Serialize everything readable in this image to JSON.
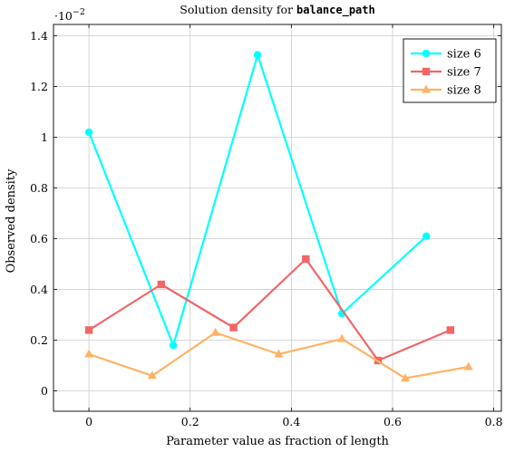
{
  "chart_data": {
    "type": "line",
    "title": "Solution density for ",
    "title_code": "balance_path",
    "xlabel": "Parameter value as fraction of length",
    "ylabel": "Observed density",
    "y_exponent_label": "·10",
    "y_exponent_power": "−2",
    "xlim": [
      -0.07,
      0.815
    ],
    "ylim": [
      -0.08,
      1.445
    ],
    "xticks": [
      0,
      0.2,
      0.4,
      0.6,
      0.8
    ],
    "xtick_labels": [
      "0",
      "0.2",
      "0.4",
      "0.6",
      "0.8"
    ],
    "yticks": [
      0,
      0.2,
      0.4,
      0.6,
      0.8,
      1,
      1.2,
      1.4
    ],
    "ytick_labels": [
      "0",
      "0.2",
      "0.4",
      "0.6",
      "0.8",
      "1",
      "1.2",
      "1.4"
    ],
    "grid": true,
    "legend_position": "top-right",
    "series": [
      {
        "name": "size 6",
        "color": "#00ffff",
        "marker": "circle",
        "x": [
          0,
          0.1667,
          0.3333,
          0.5,
          0.6667
        ],
        "y": [
          1.02,
          0.18,
          1.325,
          0.305,
          0.61
        ]
      },
      {
        "name": "size 7",
        "color": "#f26666",
        "marker": "square",
        "x": [
          0,
          0.1429,
          0.2857,
          0.4286,
          0.5714,
          0.7143
        ],
        "y": [
          0.24,
          0.42,
          0.25,
          0.52,
          0.12,
          0.24
        ]
      },
      {
        "name": "size 8",
        "color": "#ffb366",
        "marker": "triangle",
        "x": [
          0,
          0.125,
          0.25,
          0.375,
          0.5,
          0.625,
          0.75
        ],
        "y": [
          0.145,
          0.06,
          0.23,
          0.145,
          0.205,
          0.05,
          0.095
        ]
      }
    ]
  }
}
